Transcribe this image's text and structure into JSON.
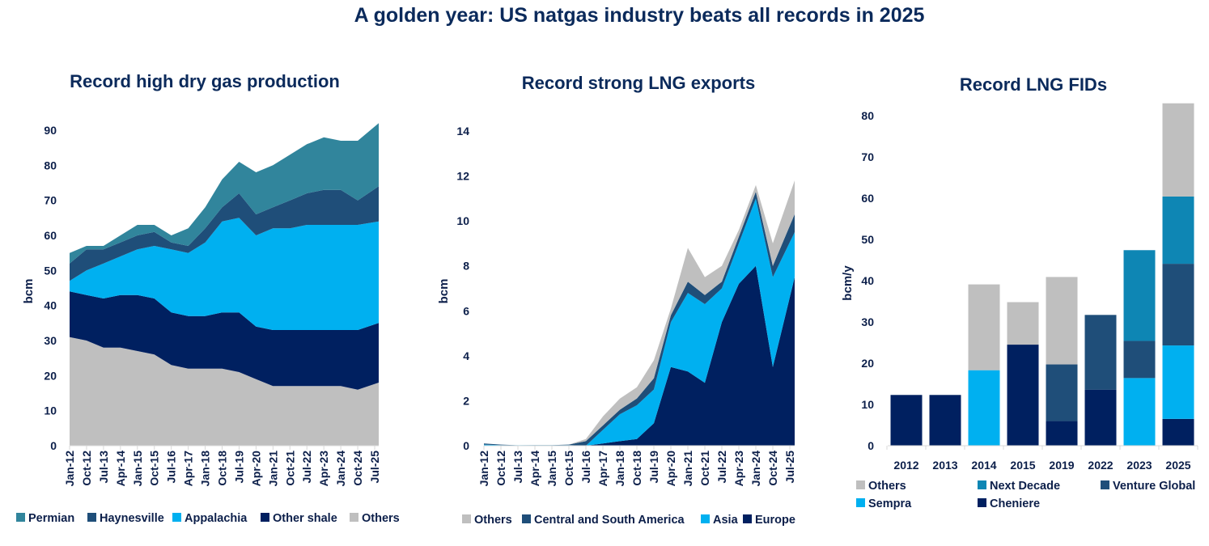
{
  "title": "A golden year: US natgas industry beats all records in 2025",
  "chart_data": [
    {
      "type": "area",
      "stacked": true,
      "title": "Record high dry gas production",
      "ylabel": "bcm",
      "ylim": [
        0,
        95
      ],
      "yticks": [
        "0",
        "10",
        "20",
        "30",
        "40",
        "50",
        "60",
        "70",
        "80",
        "90"
      ],
      "x": [
        "Jan-12",
        "Oct-12",
        "Jul-13",
        "Apr-14",
        "Jan-15",
        "Oct-15",
        "Jul-16",
        "Apr-17",
        "Jan-18",
        "Oct-18",
        "Jul-19",
        "Apr-20",
        "Jan-21",
        "Oct-21",
        "Jul-22",
        "Apr-23",
        "Jan-24",
        "Oct-24",
        "Jul-25"
      ],
      "legend_position": "bottom",
      "series": [
        {
          "name": "Others",
          "color": "#bfbfbf",
          "values": [
            31,
            30,
            28,
            28,
            27,
            26,
            23,
            22,
            22,
            22,
            21,
            19,
            17,
            17,
            17,
            17,
            17,
            16,
            18
          ]
        },
        {
          "name": "Other shale",
          "color": "#002060",
          "values": [
            13,
            13,
            14,
            15,
            16,
            16,
            15,
            15,
            15,
            16,
            17,
            15,
            16,
            16,
            16,
            16,
            16,
            17,
            17
          ]
        },
        {
          "name": "Appalachia",
          "color": "#00b0f0",
          "values": [
            3,
            7,
            10,
            11,
            13,
            15,
            18,
            18,
            21,
            26,
            27,
            26,
            29,
            29,
            30,
            30,
            30,
            30,
            29
          ]
        },
        {
          "name": "Haynesville",
          "color": "#1f4e79",
          "values": [
            5,
            6,
            4,
            4,
            4,
            4,
            2,
            2,
            4,
            4,
            7,
            6,
            6,
            8,
            9,
            10,
            10,
            7,
            10
          ]
        },
        {
          "name": "Permian",
          "color": "#31859c",
          "values": [
            3,
            1,
            1,
            2,
            3,
            2,
            2,
            5,
            6,
            8,
            9,
            12,
            12,
            13,
            14,
            15,
            14,
            17,
            18
          ]
        }
      ],
      "legend_order": [
        "Permian",
        "Haynesville",
        "Appalachia",
        "Other shale",
        "Others"
      ]
    },
    {
      "type": "area",
      "stacked": true,
      "title": "Record strong LNG exports",
      "ylabel": "bcm",
      "ylim": [
        0,
        14
      ],
      "yticks": [
        "0",
        "2",
        "4",
        "6",
        "8",
        "10",
        "12",
        "14"
      ],
      "x": [
        "Jan-12",
        "Oct-12",
        "Jul-13",
        "Apr-14",
        "Jan-15",
        "Oct-15",
        "Jul-16",
        "Apr-17",
        "Jan-18",
        "Oct-18",
        "Jul-19",
        "Apr-20",
        "Jan-21",
        "Oct-21",
        "Jul-22",
        "Apr-23",
        "Jan-24",
        "Oct-24",
        "Jul-25"
      ],
      "legend_position": "bottom",
      "series": [
        {
          "name": "Europe",
          "color": "#002060",
          "values": [
            0,
            0,
            0,
            0,
            0,
            0,
            0,
            0.1,
            0.2,
            0.3,
            1.0,
            3.5,
            3.3,
            2.8,
            5.5,
            7.2,
            8.0,
            3.5,
            7.5
          ]
        },
        {
          "name": "Asia",
          "color": "#00b0f0",
          "values": [
            0.05,
            0.03,
            0.02,
            0.02,
            0.02,
            0.03,
            0,
            0.6,
            1.2,
            1.5,
            1.5,
            2.0,
            3.5,
            3.5,
            1.5,
            1.8,
            3.0,
            4.0,
            2.0
          ]
        },
        {
          "name": "Central and South America",
          "color": "#1f4e79",
          "values": [
            0.05,
            0.02,
            0,
            0.01,
            0.01,
            0.02,
            0.2,
            0.2,
            0.2,
            0.3,
            0.5,
            0.3,
            0.5,
            0.4,
            0.3,
            0.3,
            0.3,
            0.5,
            0.8
          ]
        },
        {
          "name": "Others",
          "color": "#bfbfbf",
          "values": [
            0,
            0,
            0,
            0,
            0,
            0,
            0.1,
            0.4,
            0.5,
            0.5,
            0.8,
            0.3,
            1.5,
            0.8,
            0.7,
            0.3,
            0.3,
            1.0,
            1.5
          ]
        }
      ],
      "legend_order": [
        "Others",
        "Central and South America",
        "Asia",
        "Europe"
      ]
    },
    {
      "type": "bar",
      "stacked": true,
      "title": "Record LNG FIDs",
      "ylabel": "bcm/y",
      "ylim": [
        0,
        83
      ],
      "yticks": [
        "0",
        "10",
        "20",
        "30",
        "40",
        "50",
        "60",
        "70",
        "80"
      ],
      "categories": [
        "2012",
        "2013",
        "2014",
        "2015",
        "2019",
        "2022",
        "2023",
        "2025"
      ],
      "legend_position": "bottom",
      "series": [
        {
          "name": "Cheniere",
          "color": "#002060",
          "values": [
            12.3,
            12.3,
            0,
            24.5,
            6.0,
            13.6,
            0,
            6.5
          ]
        },
        {
          "name": "Sempra",
          "color": "#00b0f0",
          "values": [
            0,
            0,
            18.3,
            0,
            0,
            0,
            16.4,
            17.8
          ]
        },
        {
          "name": "Venture Global",
          "color": "#1f4e79",
          "values": [
            0,
            0,
            0,
            0,
            13.7,
            18.1,
            9.0,
            19.8
          ]
        },
        {
          "name": "Next Decade",
          "color": "#0e86b4",
          "values": [
            0,
            0,
            0,
            0,
            0,
            0,
            22.0,
            16.3
          ]
        },
        {
          "name": "Others",
          "color": "#bfbfbf",
          "values": [
            0,
            0,
            20.8,
            10.3,
            21.2,
            0,
            0,
            22.6
          ]
        }
      ],
      "legend_order": [
        "Others",
        "Next Decade",
        "Venture Global",
        "Sempra",
        "Cheniere"
      ]
    }
  ]
}
